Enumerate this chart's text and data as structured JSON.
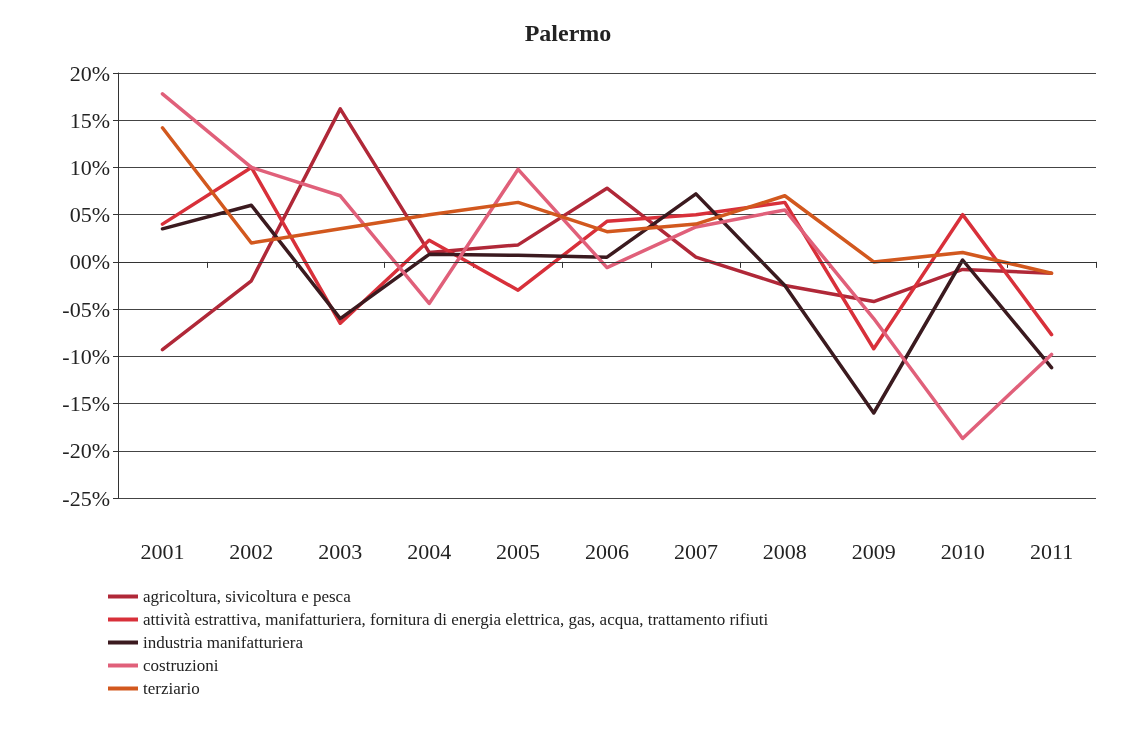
{
  "chart_data": {
    "type": "line",
    "title": "Palermo",
    "categories": [
      "2001",
      "2002",
      "2003",
      "2004",
      "2005",
      "2006",
      "2007",
      "2008",
      "2009",
      "2010",
      "2011"
    ],
    "series": [
      {
        "name": "agricoltura, sivicoltura e pesca",
        "color": "#b02838",
        "values": [
          -9.3,
          -2,
          16.2,
          1,
          1.8,
          7.8,
          0.5,
          -2.5,
          -4.2,
          -0.8,
          -1.2
        ]
      },
      {
        "name": "attività estrattiva, manifatturiera, fornitura di energia elettrica, gas, acqua, trattamento rifiuti",
        "color": "#d8303a",
        "values": [
          4,
          10,
          -6.5,
          2.3,
          -3,
          4.3,
          5,
          6.3,
          -9.2,
          5,
          -7.7
        ]
      },
      {
        "name": "industria manifatturiera",
        "color": "#3b1a1f",
        "values": [
          3.5,
          6,
          -6,
          0.8,
          0.7,
          0.5,
          7.2,
          -2.5,
          -16,
          0.2,
          -11.2
        ]
      },
      {
        "name": "costruzioni",
        "color": "#e0607a",
        "values": [
          17.8,
          10,
          7,
          -4.4,
          9.8,
          -0.6,
          3.7,
          5.5,
          -6,
          -18.7,
          -9.8
        ]
      },
      {
        "name": "terziario",
        "color": "#d2581e",
        "values": [
          14.2,
          2,
          3.5,
          5,
          6.3,
          3.2,
          4,
          7,
          0,
          1,
          -1.2
        ]
      }
    ],
    "ylim": [
      -25,
      20
    ],
    "yticks": [
      {
        "value": -25,
        "label": "-25%"
      },
      {
        "value": -20,
        "label": "-20%"
      },
      {
        "value": -15,
        "label": "-15%"
      },
      {
        "value": -10,
        "label": "-10%"
      },
      {
        "value": -5,
        "label": "-05%"
      },
      {
        "value": 0,
        "label": "00%"
      },
      {
        "value": 5,
        "label": "05%"
      },
      {
        "value": 10,
        "label": "10%"
      },
      {
        "value": 15,
        "label": "15%"
      },
      {
        "value": 20,
        "label": "20%"
      }
    ],
    "grid": "y",
    "legend": "bottom",
    "marker": "none",
    "line_style": "solid"
  }
}
